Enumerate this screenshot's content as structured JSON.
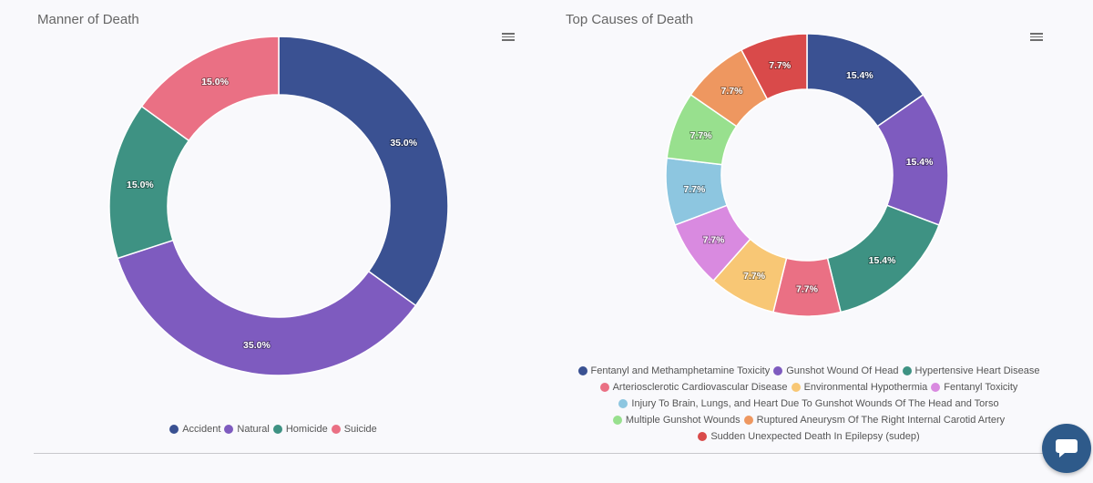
{
  "chart_data": [
    {
      "type": "pie",
      "title": "Manner of Death",
      "donut": true,
      "categories": [
        "Accident",
        "Natural",
        "Homicide",
        "Suicide"
      ],
      "values": [
        35.0,
        35.0,
        15.0,
        15.0
      ],
      "labels": [
        "35.0%",
        "35.0%",
        "15.0%",
        "15.0%"
      ],
      "colors": [
        "#3a5192",
        "#7e5bbf",
        "#3e9283",
        "#ea7084"
      ],
      "legend": "bottom"
    },
    {
      "type": "pie",
      "title": "Top Causes of Death",
      "donut": true,
      "categories": [
        "Fentanyl and Methamphetamine Toxicity",
        "Gunshot Wound Of Head",
        "Hypertensive Heart Disease",
        "Arteriosclerotic Cardiovascular Disease",
        "Environmental Hypothermia",
        "Fentanyl Toxicity",
        "Injury To Brain, Lungs, and Heart Due To Gunshot Wounds Of The Head and Torso",
        "Multiple Gunshot Wounds",
        "Ruptured Aneurysm Of The Right Internal Carotid Artery",
        "Sudden Unexpected Death In Epilepsy (sudep)"
      ],
      "values": [
        15.4,
        15.4,
        15.4,
        7.7,
        7.7,
        7.7,
        7.7,
        7.7,
        7.7,
        7.7
      ],
      "labels": [
        "15.4%",
        "15.4%",
        "15.4%",
        "7.7%",
        "7.7%",
        "7.7%",
        "7.7%",
        "7.7%",
        "7.7%",
        "7.7%"
      ],
      "colors": [
        "#3a5192",
        "#7e5bbf",
        "#3e9283",
        "#ea7084",
        "#f8c775",
        "#d98ae0",
        "#8dc6e0",
        "#98e08e",
        "#ee9760",
        "#d94a4a"
      ],
      "legend": "bottom",
      "legend_rows": [
        [
          0,
          1,
          2
        ],
        [
          3,
          4,
          5
        ],
        [
          6
        ],
        [
          7,
          8
        ],
        [
          9
        ]
      ]
    }
  ],
  "ui": {
    "menu_icon": "hamburger-icon",
    "chat_icon": "chat-bubble-icon",
    "chat_color": "#2e5a8a"
  }
}
